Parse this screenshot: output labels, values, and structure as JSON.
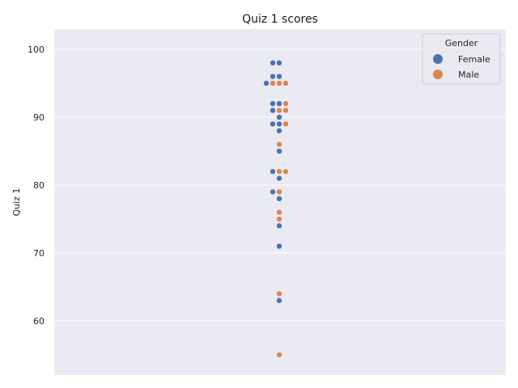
{
  "chart_data": {
    "type": "swarm",
    "title": "Quiz 1 scores",
    "xlabel": "",
    "ylabel": "Quiz 1",
    "ylim": [
      52.5,
      103
    ],
    "yticks": [
      60,
      70,
      80,
      90,
      100
    ],
    "grid": true,
    "legend": {
      "title": "Gender",
      "placement": "top-right",
      "entries": [
        {
          "name": "Female",
          "color": "#4c72b0"
        },
        {
          "name": "Male",
          "color": "#dd8452"
        }
      ]
    },
    "series": [
      {
        "name": "Female",
        "color": "#4c72b0",
        "values": [
          98,
          98,
          96,
          96,
          95,
          92,
          92,
          91,
          90,
          89,
          89,
          88,
          85,
          82,
          81,
          79,
          78,
          74,
          71,
          63
        ]
      },
      {
        "name": "Male",
        "color": "#dd8452",
        "values": [
          95,
          95,
          95,
          92,
          91,
          91,
          89,
          86,
          82,
          82,
          79,
          76,
          75,
          64,
          55
        ]
      }
    ]
  }
}
